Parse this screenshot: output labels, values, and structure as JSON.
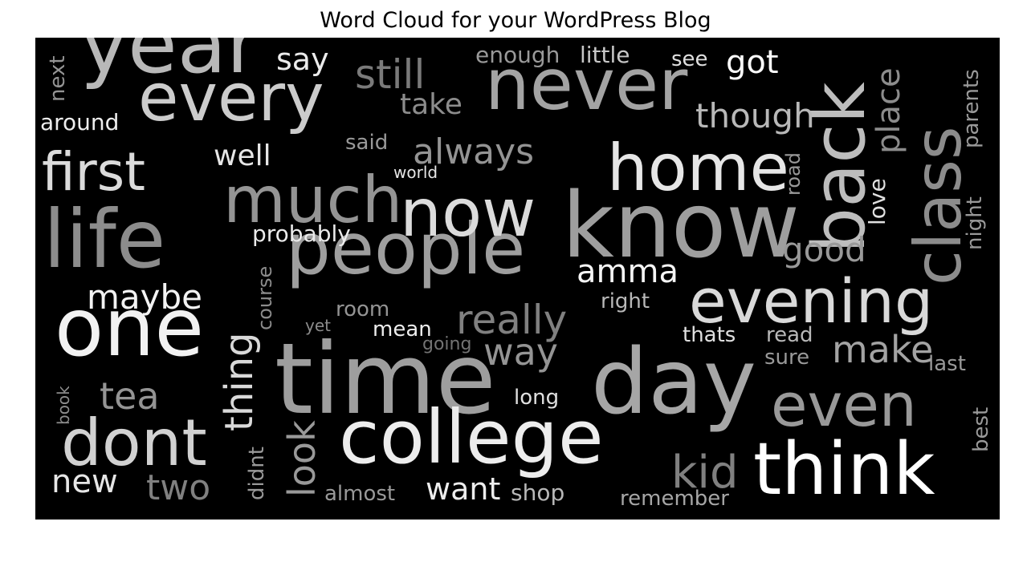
{
  "title": "Word Cloud for your WordPress Blog",
  "colors": {
    "background": "#000000",
    "words": "grayscale"
  },
  "chart_data": {
    "type": "wordcloud",
    "title": "Word Cloud for your WordPress Blog",
    "words": [
      {
        "text": "time",
        "rank": 1,
        "shade": 0.62,
        "orientation": "horizontal"
      },
      {
        "text": "know",
        "rank": 2,
        "shade": 0.62,
        "orientation": "horizontal"
      },
      {
        "text": "day",
        "rank": 3,
        "shade": 0.65,
        "orientation": "horizontal"
      },
      {
        "text": "college",
        "rank": 4,
        "shade": 0.93,
        "orientation": "horizontal"
      },
      {
        "text": "think",
        "rank": 5,
        "shade": 1.0,
        "orientation": "horizontal"
      },
      {
        "text": "people",
        "rank": 6,
        "shade": 0.62,
        "orientation": "horizontal"
      },
      {
        "text": "one",
        "rank": 7,
        "shade": 0.95,
        "orientation": "horizontal"
      },
      {
        "text": "life",
        "rank": 8,
        "shade": 0.55,
        "orientation": "horizontal"
      },
      {
        "text": "year",
        "rank": 9,
        "shade": 0.72,
        "orientation": "horizontal"
      },
      {
        "text": "never",
        "rank": 10,
        "shade": 0.64,
        "orientation": "horizontal"
      },
      {
        "text": "every",
        "rank": 11,
        "shade": 0.8,
        "orientation": "horizontal"
      },
      {
        "text": "now",
        "rank": 12,
        "shade": 0.86,
        "orientation": "horizontal"
      },
      {
        "text": "evening",
        "rank": 13,
        "shade": 0.85,
        "orientation": "horizontal"
      },
      {
        "text": "back",
        "rank": 14,
        "shade": 0.74,
        "orientation": "vertical"
      },
      {
        "text": "class",
        "rank": 15,
        "shade": 0.55,
        "orientation": "vertical"
      },
      {
        "text": "dont",
        "rank": 16,
        "shade": 0.82,
        "orientation": "horizontal"
      },
      {
        "text": "much",
        "rank": 17,
        "shade": 0.58,
        "orientation": "horizontal"
      },
      {
        "text": "home",
        "rank": 18,
        "shade": 0.9,
        "orientation": "horizontal"
      },
      {
        "text": "first",
        "rank": 19,
        "shade": 0.86,
        "orientation": "horizontal"
      },
      {
        "text": "even",
        "rank": 20,
        "shade": 0.6,
        "orientation": "horizontal"
      },
      {
        "text": "really",
        "rank": 21,
        "shade": 0.5,
        "orientation": "horizontal"
      },
      {
        "text": "thing",
        "rank": 22,
        "shade": 0.85,
        "orientation": "vertical"
      },
      {
        "text": "always",
        "rank": 23,
        "shade": 0.58,
        "orientation": "horizontal"
      },
      {
        "text": "still",
        "rank": 24,
        "shade": 0.48,
        "orientation": "horizontal"
      },
      {
        "text": "way",
        "rank": 25,
        "shade": 0.58,
        "orientation": "horizontal"
      },
      {
        "text": "make",
        "rank": 26,
        "shade": 0.64,
        "orientation": "horizontal"
      },
      {
        "text": "kid",
        "rank": 27,
        "shade": 0.5,
        "orientation": "horizontal"
      },
      {
        "text": "look",
        "rank": 28,
        "shade": 0.6,
        "orientation": "vertical"
      },
      {
        "text": "tea",
        "rank": 29,
        "shade": 0.58,
        "orientation": "horizontal"
      },
      {
        "text": "two",
        "rank": 30,
        "shade": 0.5,
        "orientation": "horizontal"
      },
      {
        "text": "place",
        "rank": 31,
        "shade": 0.55,
        "orientation": "vertical"
      },
      {
        "text": "though",
        "rank": 32,
        "shade": 0.72,
        "orientation": "horizontal"
      },
      {
        "text": "amma",
        "rank": 33,
        "shade": 0.96,
        "orientation": "horizontal"
      },
      {
        "text": "good",
        "rank": 34,
        "shade": 0.6,
        "orientation": "horizontal"
      },
      {
        "text": "maybe",
        "rank": 35,
        "shade": 0.95,
        "orientation": "horizontal"
      },
      {
        "text": "new",
        "rank": 36,
        "shade": 0.9,
        "orientation": "horizontal"
      },
      {
        "text": "want",
        "rank": 37,
        "shade": 0.93,
        "orientation": "horizontal"
      },
      {
        "text": "say",
        "rank": 38,
        "shade": 0.92,
        "orientation": "horizontal"
      },
      {
        "text": "got",
        "rank": 39,
        "shade": 0.98,
        "orientation": "horizontal"
      },
      {
        "text": "take",
        "rank": 40,
        "shade": 0.55,
        "orientation": "horizontal"
      },
      {
        "text": "well",
        "rank": 41,
        "shade": 0.9,
        "orientation": "horizontal"
      },
      {
        "text": "probably",
        "rank": 42,
        "shade": 0.92,
        "orientation": "horizontal"
      },
      {
        "text": "parents",
        "rank": 43,
        "shade": 0.6,
        "orientation": "vertical"
      },
      {
        "text": "night",
        "rank": 44,
        "shade": 0.6,
        "orientation": "vertical"
      },
      {
        "text": "love",
        "rank": 45,
        "shade": 0.88,
        "orientation": "vertical"
      },
      {
        "text": "road",
        "rank": 46,
        "shade": 0.6,
        "orientation": "vertical"
      },
      {
        "text": "next",
        "rank": 47,
        "shade": 0.58,
        "orientation": "vertical"
      },
      {
        "text": "around",
        "rank": 48,
        "shade": 0.93,
        "orientation": "horizontal"
      },
      {
        "text": "enough",
        "rank": 49,
        "shade": 0.6,
        "orientation": "horizontal"
      },
      {
        "text": "little",
        "rank": 50,
        "shade": 0.78,
        "orientation": "horizontal"
      },
      {
        "text": "see",
        "rank": 51,
        "shade": 0.88,
        "orientation": "horizontal"
      },
      {
        "text": "said",
        "rank": 52,
        "shade": 0.6,
        "orientation": "horizontal"
      },
      {
        "text": "world",
        "rank": 53,
        "shade": 0.9,
        "orientation": "horizontal"
      },
      {
        "text": "course",
        "rank": 54,
        "shade": 0.55,
        "orientation": "vertical"
      },
      {
        "text": "room",
        "rank": 55,
        "shade": 0.58,
        "orientation": "horizontal"
      },
      {
        "text": "right",
        "rank": 56,
        "shade": 0.72,
        "orientation": "horizontal"
      },
      {
        "text": "yet",
        "rank": 57,
        "shade": 0.55,
        "orientation": "horizontal"
      },
      {
        "text": "mean",
        "rank": 58,
        "shade": 0.93,
        "orientation": "horizontal"
      },
      {
        "text": "going",
        "rank": 59,
        "shade": 0.45,
        "orientation": "horizontal"
      },
      {
        "text": "thats",
        "rank": 60,
        "shade": 0.88,
        "orientation": "horizontal"
      },
      {
        "text": "read",
        "rank": 61,
        "shade": 0.72,
        "orientation": "horizontal"
      },
      {
        "text": "sure",
        "rank": 62,
        "shade": 0.6,
        "orientation": "horizontal"
      },
      {
        "text": "last",
        "rank": 63,
        "shade": 0.6,
        "orientation": "horizontal"
      },
      {
        "text": "long",
        "rank": 64,
        "shade": 0.88,
        "orientation": "horizontal"
      },
      {
        "text": "book",
        "rank": 65,
        "shade": 0.55,
        "orientation": "vertical"
      },
      {
        "text": "didnt",
        "rank": 66,
        "shade": 0.6,
        "orientation": "vertical"
      },
      {
        "text": "best",
        "rank": 67,
        "shade": 0.6,
        "orientation": "vertical"
      },
      {
        "text": "almost",
        "rank": 68,
        "shade": 0.6,
        "orientation": "horizontal"
      },
      {
        "text": "shop",
        "rank": 69,
        "shade": 0.72,
        "orientation": "horizontal"
      },
      {
        "text": "remember",
        "rank": 70,
        "shade": 0.65,
        "orientation": "horizontal"
      }
    ]
  }
}
